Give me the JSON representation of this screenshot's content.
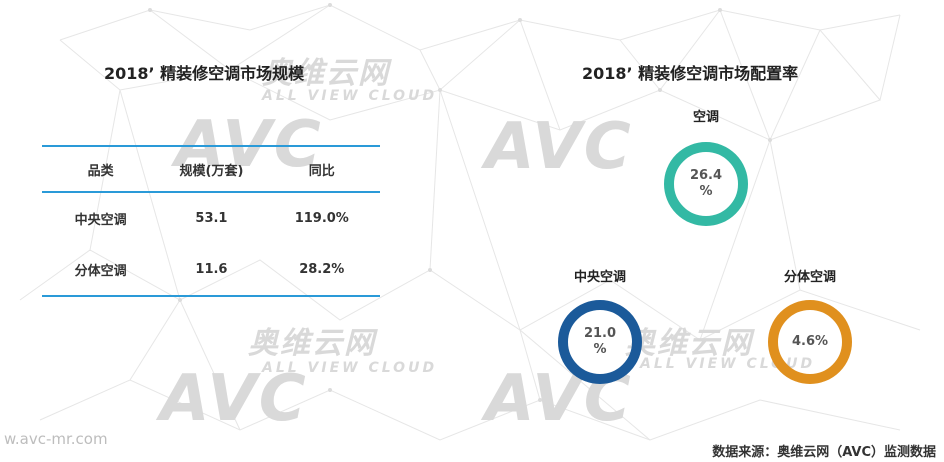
{
  "watermark": {
    "logo": "AVC",
    "cn": "奥维云网",
    "sub": "ALL VIEW CLOUD"
  },
  "left": {
    "title": "2018’ 精装修空调市场规模",
    "table": {
      "headers": [
        "品类",
        "规模(万套)",
        "同比"
      ],
      "rows": [
        [
          "中央空调",
          "53.1",
          "119.0%"
        ],
        [
          "分体空调",
          "11.6",
          "28.2%"
        ]
      ]
    }
  },
  "right": {
    "title": "2018’ 精装修空调市场配置率"
  },
  "colors": {
    "rule": "#2a9ad8",
    "teal": "#33b9a4",
    "navy": "#1b5a9a",
    "orange": "#e0901e"
  },
  "chart_data": {
    "type": "table",
    "title": "2018’ 精装修空调市场配置率",
    "categories": [
      "空调",
      "中央空调",
      "分体空调"
    ],
    "values": [
      26.4,
      21.0,
      4.6
    ],
    "value_labels": [
      "26.4\n%",
      "21.0\n%",
      "4.6%"
    ],
    "colors": [
      "#33b9a4",
      "#1b5a9a",
      "#e0901e"
    ]
  },
  "footer": {
    "url": "w.avc-mr.com",
    "source": "数据来源：奥维云网（AVC）监测数据"
  }
}
